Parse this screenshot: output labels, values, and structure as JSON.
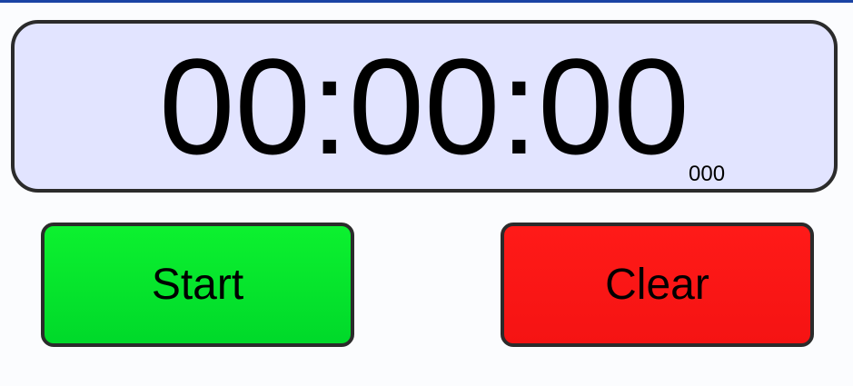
{
  "stopwatch": {
    "time": "00:00:00",
    "milliseconds": "000"
  },
  "controls": {
    "start_label": "Start",
    "clear_label": "Clear"
  },
  "colors": {
    "top_rule": "#1a43a4",
    "display_background": "#e2e4ff",
    "start_button": "#00e82d",
    "clear_button": "#ff1616"
  }
}
